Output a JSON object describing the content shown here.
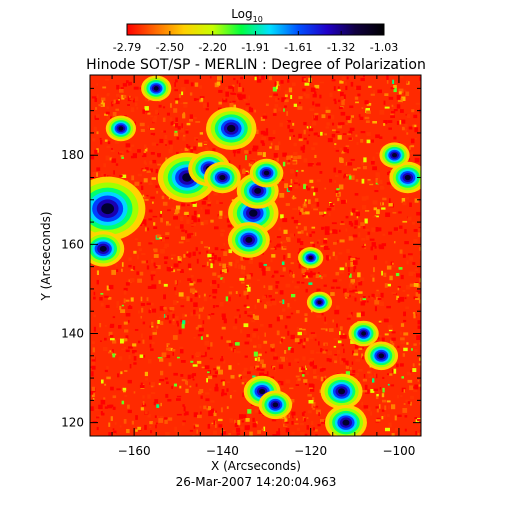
{
  "colorbar": {
    "label_main": "Log",
    "label_sub": "10",
    "ticks": [
      "-2.79",
      "-2.50",
      "-2.20",
      "-1.91",
      "-1.61",
      "-1.32",
      "-1.03"
    ],
    "colors": [
      "#ff0000",
      "#ff6a00",
      "#ffd000",
      "#c8ff00",
      "#00ff40",
      "#00e0ff",
      "#0050ff",
      "#2000c8",
      "#100040",
      "#000000"
    ]
  },
  "chart_data": {
    "type": "heatmap",
    "title": "Hinode SOT/SP - MERLIN : Degree of Polarization",
    "xlabel": "X (Arcseconds)",
    "ylabel": "Y (Arcseconds)",
    "xlim": [
      -170,
      -95
    ],
    "ylim": [
      117,
      198
    ],
    "x_ticks": [
      -160,
      -140,
      -120,
      -100
    ],
    "y_ticks": [
      120,
      140,
      160,
      180
    ],
    "value_range": [
      -2.79,
      -1.03
    ],
    "value_label": "Log10 degree of polarization",
    "high_polarization_regions": [
      {
        "x": -166,
        "y": 168,
        "radius": 4.5
      },
      {
        "x": -167,
        "y": 159,
        "radius": 2.5
      },
      {
        "x": -148,
        "y": 175,
        "radius": 3.5
      },
      {
        "x": -143,
        "y": 177,
        "radius": 2.5
      },
      {
        "x": -140,
        "y": 175,
        "radius": 2.2
      },
      {
        "x": -138,
        "y": 186,
        "radius": 3.0
      },
      {
        "x": -133,
        "y": 167,
        "radius": 3.0
      },
      {
        "x": -132,
        "y": 172,
        "radius": 2.5
      },
      {
        "x": -134,
        "y": 161,
        "radius": 2.5
      },
      {
        "x": -130,
        "y": 176,
        "radius": 2.0
      },
      {
        "x": -131,
        "y": 127,
        "radius": 2.2
      },
      {
        "x": -128,
        "y": 124,
        "radius": 2.0
      },
      {
        "x": -113,
        "y": 127,
        "radius": 2.5
      },
      {
        "x": -112,
        "y": 120,
        "radius": 2.5
      },
      {
        "x": -104,
        "y": 135,
        "radius": 2.0
      },
      {
        "x": -108,
        "y": 140,
        "radius": 1.8
      },
      {
        "x": -98,
        "y": 175,
        "radius": 2.2
      },
      {
        "x": -101,
        "y": 180,
        "radius": 1.8
      },
      {
        "x": -118,
        "y": 147,
        "radius": 1.5
      },
      {
        "x": -120,
        "y": 157,
        "radius": 1.5
      },
      {
        "x": -155,
        "y": 195,
        "radius": 1.8
      },
      {
        "x": -163,
        "y": 186,
        "radius": 1.8
      }
    ]
  },
  "footer": {
    "timestamp": "26-Mar-2007 14:20:04.963"
  }
}
